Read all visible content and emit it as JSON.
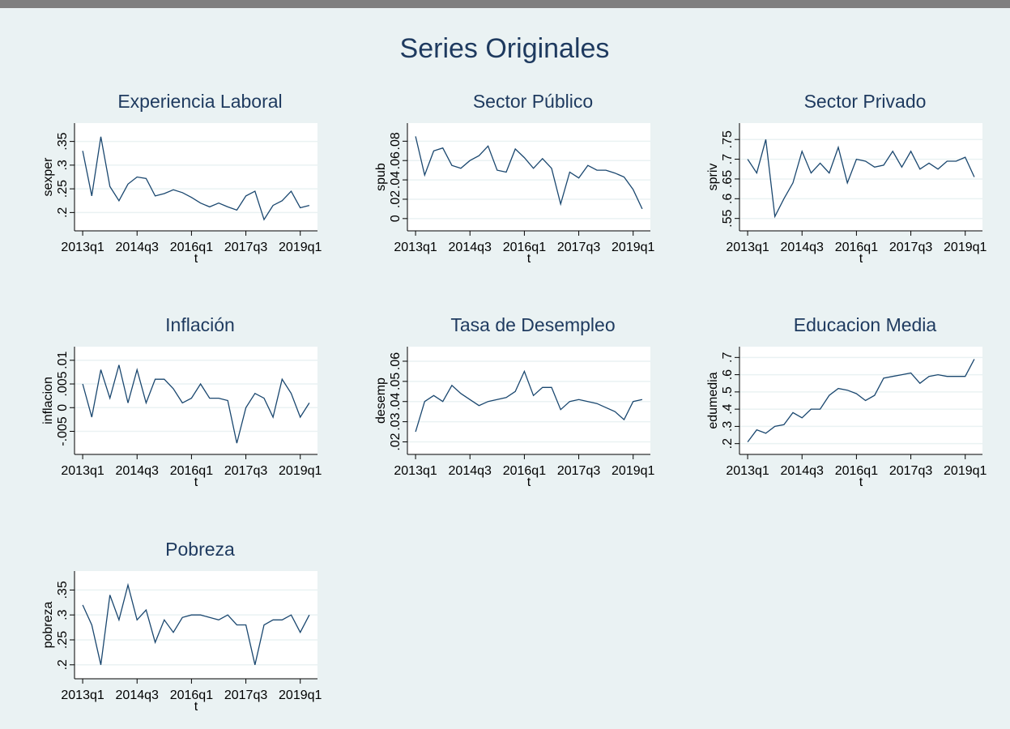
{
  "title": "Series Originales",
  "chart_data": [
    {
      "type": "line",
      "title": "Experiencia Laboral",
      "ylabel": "sexper",
      "xlabel": "t",
      "color": "#1a476f",
      "grid": true,
      "x": [
        "2013q1",
        "2013q2",
        "2013q3",
        "2013q4",
        "2014q1",
        "2014q2",
        "2014q3",
        "2014q4",
        "2015q1",
        "2015q2",
        "2015q3",
        "2015q4",
        "2016q1",
        "2016q2",
        "2016q3",
        "2016q4",
        "2017q1",
        "2017q2",
        "2017q3",
        "2017q4",
        "2018q1",
        "2018q2",
        "2018q3",
        "2018q4",
        "2019q1",
        "2019q2"
      ],
      "xticks": [
        "2013q1",
        "2014q3",
        "2016q1",
        "2017q3",
        "2019q1"
      ],
      "values": [
        0.33,
        0.235,
        0.36,
        0.255,
        0.225,
        0.26,
        0.275,
        0.272,
        0.235,
        0.24,
        0.248,
        0.242,
        0.232,
        0.22,
        0.212,
        0.22,
        0.212,
        0.205,
        0.235,
        0.245,
        0.185,
        0.215,
        0.225,
        0.245,
        0.21,
        0.215
      ],
      "ylim": [
        0.175,
        0.375
      ],
      "yticks": [
        {
          "value": 0.2,
          "label": ".2"
        },
        {
          "value": 0.25,
          "label": ".25"
        },
        {
          "value": 0.3,
          "label": ".3"
        },
        {
          "value": 0.35,
          "label": ".35"
        }
      ]
    },
    {
      "type": "line",
      "title": "Sector Público",
      "ylabel": "spub",
      "xlabel": "t",
      "color": "#1a476f",
      "grid": true,
      "x": [
        "2013q1",
        "2013q2",
        "2013q3",
        "2013q4",
        "2014q1",
        "2014q2",
        "2014q3",
        "2014q4",
        "2015q1",
        "2015q2",
        "2015q3",
        "2015q4",
        "2016q1",
        "2016q2",
        "2016q3",
        "2016q4",
        "2017q1",
        "2017q2",
        "2017q3",
        "2017q4",
        "2018q1",
        "2018q2",
        "2018q3",
        "2018q4",
        "2019q1",
        "2019q2"
      ],
      "xticks": [
        "2013q1",
        "2014q3",
        "2016q1",
        "2017q3",
        "2019q1"
      ],
      "values": [
        0.085,
        0.045,
        0.07,
        0.073,
        0.055,
        0.052,
        0.06,
        0.065,
        0.075,
        0.05,
        0.048,
        0.072,
        0.063,
        0.052,
        0.062,
        0.052,
        0.015,
        0.048,
        0.042,
        0.055,
        0.05,
        0.05,
        0.047,
        0.043,
        0.03,
        0.01
      ],
      "ylim": [
        -0.006,
        0.092
      ],
      "yticks": [
        0,
        {
          "value": 0.02,
          "label": ".02"
        },
        {
          "value": 0.04,
          "label": ".04"
        },
        {
          "value": 0.06,
          "label": ".06"
        },
        {
          "value": 0.08,
          "label": ".08"
        }
      ]
    },
    {
      "type": "line",
      "title": "Sector Privado",
      "ylabel": "spriv",
      "xlabel": "t",
      "color": "#1a476f",
      "grid": true,
      "x": [
        "2013q1",
        "2013q2",
        "2013q3",
        "2013q4",
        "2014q1",
        "2014q2",
        "2014q3",
        "2014q4",
        "2015q1",
        "2015q2",
        "2015q3",
        "2015q4",
        "2016q1",
        "2016q2",
        "2016q3",
        "2016q4",
        "2017q1",
        "2017q2",
        "2017q3",
        "2017q4",
        "2018q1",
        "2018q2",
        "2018q3",
        "2018q4",
        "2019q1",
        "2019q2"
      ],
      "xticks": [
        "2013q1",
        "2014q3",
        "2016q1",
        "2017q3",
        "2019q1"
      ],
      "values": [
        0.7,
        0.665,
        0.75,
        0.555,
        0.6,
        0.64,
        0.72,
        0.665,
        0.69,
        0.665,
        0.73,
        0.64,
        0.7,
        0.695,
        0.68,
        0.685,
        0.72,
        0.68,
        0.72,
        0.675,
        0.69,
        0.675,
        0.695,
        0.695,
        0.705,
        0.655
      ],
      "ylim": [
        0.535,
        0.775
      ],
      "yticks": [
        {
          "value": 0.55,
          "label": ".55"
        },
        {
          "value": 0.6,
          "label": ".6"
        },
        {
          "value": 0.65,
          "label": ".65"
        },
        {
          "value": 0.7,
          "label": ".7"
        },
        {
          "value": 0.75,
          "label": ".75"
        }
      ]
    },
    {
      "type": "line",
      "title": "Inflación",
      "ylabel": "inflacion",
      "xlabel": "t",
      "color": "#1a476f",
      "grid": true,
      "x": [
        "2013q1",
        "2013q2",
        "2013q3",
        "2013q4",
        "2014q1",
        "2014q2",
        "2014q3",
        "2014q4",
        "2015q1",
        "2015q2",
        "2015q3",
        "2015q4",
        "2016q1",
        "2016q2",
        "2016q3",
        "2016q4",
        "2017q1",
        "2017q2",
        "2017q3",
        "2017q4",
        "2018q1",
        "2018q2",
        "2018q3",
        "2018q4",
        "2019q1",
        "2019q2"
      ],
      "xticks": [
        "2013q1",
        "2014q3",
        "2016q1",
        "2017q3",
        "2019q1"
      ],
      "values": [
        0.005,
        -0.002,
        0.008,
        0.002,
        0.009,
        0.001,
        0.008,
        0.001,
        0.006,
        0.006,
        0.004,
        0.001,
        0.002,
        0.005,
        0.002,
        0.002,
        0.0015,
        -0.0075,
        0.0,
        0.003,
        0.002,
        -0.002,
        0.006,
        0.003,
        -0.002,
        0.001
      ],
      "ylim": [
        -0.0085,
        0.0115
      ],
      "yticks": [
        {
          "value": -0.005,
          "label": "-.005"
        },
        0,
        {
          "value": 0.005,
          "label": ".005"
        },
        {
          "value": 0.01,
          "label": ".01"
        }
      ]
    },
    {
      "type": "line",
      "title": "Tasa de Desempleo",
      "ylabel": "desemp",
      "xlabel": "t",
      "color": "#1a476f",
      "grid": true,
      "x": [
        "2013q1",
        "2013q2",
        "2013q3",
        "2013q4",
        "2014q1",
        "2014q2",
        "2014q3",
        "2014q4",
        "2015q1",
        "2015q2",
        "2015q3",
        "2015q4",
        "2016q1",
        "2016q2",
        "2016q3",
        "2016q4",
        "2017q1",
        "2017q2",
        "2017q3",
        "2017q4",
        "2018q1",
        "2018q2",
        "2018q3",
        "2018q4",
        "2019q1",
        "2019q2"
      ],
      "xticks": [
        "2013q1",
        "2014q3",
        "2016q1",
        "2017q3",
        "2019q1"
      ],
      "values": [
        0.025,
        0.04,
        0.043,
        0.04,
        0.048,
        0.044,
        0.041,
        0.038,
        0.04,
        0.041,
        0.042,
        0.045,
        0.055,
        0.043,
        0.047,
        0.047,
        0.036,
        0.04,
        0.041,
        0.04,
        0.039,
        0.037,
        0.035,
        0.031,
        0.04,
        0.041
      ],
      "ylim": [
        0.017,
        0.064
      ],
      "yticks": [
        {
          "value": 0.02,
          "label": ".02"
        },
        {
          "value": 0.03,
          "label": ".03"
        },
        {
          "value": 0.04,
          "label": ".04"
        },
        {
          "value": 0.05,
          "label": ".05"
        },
        {
          "value": 0.06,
          "label": ".06"
        }
      ]
    },
    {
      "type": "line",
      "title": "Educacion Media",
      "ylabel": "edumedia",
      "xlabel": "t",
      "color": "#1a476f",
      "grid": true,
      "x": [
        "2013q1",
        "2013q2",
        "2013q3",
        "2013q4",
        "2014q1",
        "2014q2",
        "2014q3",
        "2014q4",
        "2015q1",
        "2015q2",
        "2015q3",
        "2015q4",
        "2016q1",
        "2016q2",
        "2016q3",
        "2016q4",
        "2017q1",
        "2017q2",
        "2017q3",
        "2017q4",
        "2018q1",
        "2018q2",
        "2018q3",
        "2018q4",
        "2019q1",
        "2019q2"
      ],
      "xticks": [
        "2013q1",
        "2014q3",
        "2016q1",
        "2017q3",
        "2019q1"
      ],
      "values": [
        0.21,
        0.28,
        0.26,
        0.3,
        0.31,
        0.38,
        0.35,
        0.4,
        0.4,
        0.48,
        0.52,
        0.51,
        0.49,
        0.45,
        0.48,
        0.58,
        0.59,
        0.6,
        0.61,
        0.55,
        0.59,
        0.6,
        0.59,
        0.59,
        0.59,
        0.69
      ],
      "ylim": [
        0.175,
        0.725
      ],
      "yticks": [
        {
          "value": 0.2,
          "label": ".2"
        },
        {
          "value": 0.3,
          "label": ".3"
        },
        {
          "value": 0.4,
          "label": ".4"
        },
        {
          "value": 0.5,
          "label": ".5"
        },
        {
          "value": 0.6,
          "label": ".6"
        },
        {
          "value": 0.7,
          "label": ".7"
        }
      ]
    },
    {
      "type": "line",
      "title": "Pobreza",
      "ylabel": "pobreza",
      "xlabel": "t",
      "color": "#1a476f",
      "grid": true,
      "x": [
        "2013q1",
        "2013q2",
        "2013q3",
        "2013q4",
        "2014q1",
        "2014q2",
        "2014q3",
        "2014q4",
        "2015q1",
        "2015q2",
        "2015q3",
        "2015q4",
        "2016q1",
        "2016q2",
        "2016q3",
        "2016q4",
        "2017q1",
        "2017q2",
        "2017q3",
        "2017q4",
        "2018q1",
        "2018q2",
        "2018q3",
        "2018q4",
        "2019q1",
        "2019q2"
      ],
      "xticks": [
        "2013q1",
        "2014q3",
        "2016q1",
        "2017q3",
        "2019q1"
      ],
      "values": [
        0.32,
        0.28,
        0.2,
        0.34,
        0.29,
        0.36,
        0.29,
        0.31,
        0.245,
        0.29,
        0.265,
        0.295,
        0.3,
        0.3,
        0.295,
        0.29,
        0.3,
        0.28,
        0.28,
        0.2,
        0.28,
        0.29,
        0.29,
        0.3,
        0.265,
        0.3
      ],
      "ylim": [
        0.185,
        0.375
      ],
      "yticks": [
        {
          "value": 0.2,
          "label": ".2"
        },
        {
          "value": 0.25,
          "label": ".25"
        },
        {
          "value": 0.3,
          "label": ".3"
        },
        {
          "value": 0.35,
          "label": ".35"
        }
      ]
    }
  ]
}
